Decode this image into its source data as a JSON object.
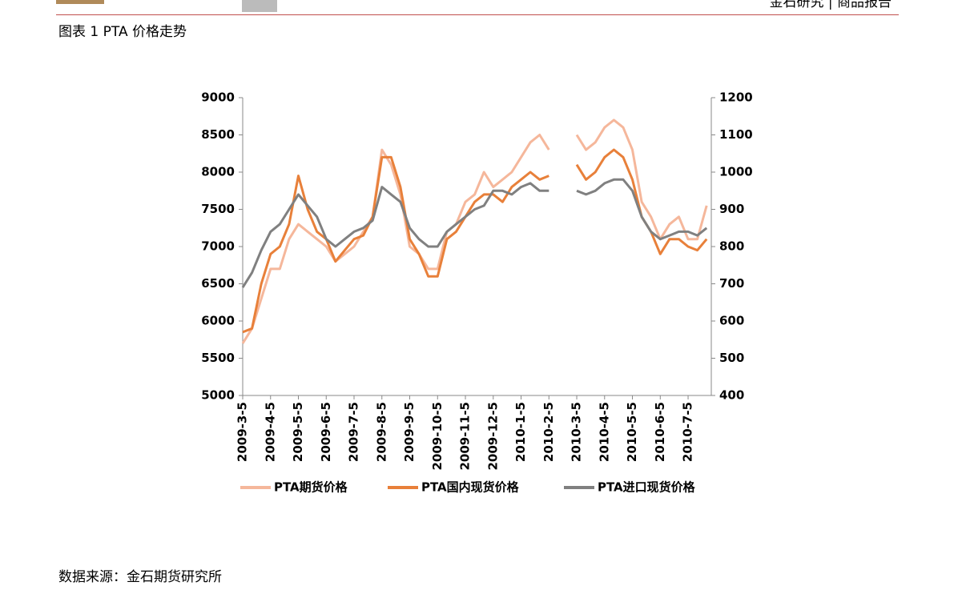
{
  "header": {
    "right": "金石研究 | 商品报告"
  },
  "figure_title": "图表 1 PTA 价格走势",
  "chart_data": {
    "type": "line",
    "categories": [
      "2009-3-5",
      null,
      null,
      "2009-4-5",
      null,
      null,
      "2009-5-5",
      null,
      null,
      "2009-6-5",
      null,
      null,
      "2009-7-5",
      null,
      null,
      "2009-8-5",
      null,
      null,
      "2009-9-5",
      null,
      null,
      "2009-10-5",
      null,
      null,
      "2009-11-5",
      null,
      null,
      "2009-12-5",
      null,
      null,
      "2010-1-5",
      null,
      null,
      "2010-2-5",
      null,
      null,
      "2010-3-5",
      null,
      null,
      "2010-4-5",
      null,
      null,
      "2010-5-5",
      null,
      null,
      "2010-6-5",
      null,
      null,
      "2010-7-5",
      null,
      null
    ],
    "series": [
      {
        "name": "PTA期货价格",
        "color": "#f5b79b",
        "values": [
          5700,
          5900,
          6300,
          6700,
          6700,
          7100,
          7300,
          7200,
          7100,
          7000,
          6800,
          6900,
          7000,
          7200,
          7400,
          8300,
          8100,
          7700,
          7000,
          6900,
          6700,
          6700,
          7200,
          7300,
          7600,
          7700,
          8000,
          7800,
          7900,
          8000,
          8200,
          8400,
          8500,
          8300,
          null,
          null,
          8500,
          8300,
          8400,
          8600,
          8700,
          8600,
          8300,
          7600,
          7400,
          7100,
          7300,
          7400,
          7100,
          7100,
          7550
        ]
      },
      {
        "name": "PTA国内现货价格",
        "color": "#e8803a",
        "values": [
          5850,
          5900,
          6500,
          6900,
          7000,
          7300,
          7950,
          7500,
          7200,
          7100,
          6800,
          6950,
          7100,
          7150,
          7400,
          8200,
          8200,
          7800,
          7100,
          6900,
          6600,
          6600,
          7100,
          7200,
          7400,
          7600,
          7700,
          7700,
          7600,
          7800,
          7900,
          8000,
          7900,
          7950,
          null,
          null,
          8100,
          7900,
          8000,
          8200,
          8300,
          8200,
          7900,
          7400,
          7200,
          6900,
          7100,
          7100,
          7000,
          6950,
          7100
        ]
      },
      {
        "name": "PTA进口现货价格",
        "color": "#808080",
        "axis": "y2",
        "values": [
          690,
          730,
          790,
          840,
          860,
          900,
          940,
          910,
          880,
          820,
          800,
          820,
          840,
          850,
          870,
          960,
          940,
          920,
          850,
          820,
          800,
          800,
          840,
          860,
          880,
          900,
          910,
          950,
          950,
          940,
          960,
          970,
          950,
          950,
          null,
          null,
          950,
          940,
          950,
          970,
          980,
          980,
          950,
          880,
          840,
          820,
          830,
          840,
          840,
          830,
          850
        ]
      }
    ],
    "ylim": [
      5000,
      9000
    ],
    "yticks": [
      5000,
      5500,
      6000,
      6500,
      7000,
      7500,
      8000,
      8500,
      9000
    ],
    "y2lim": [
      400,
      1200
    ],
    "y2ticks": [
      400,
      500,
      600,
      700,
      800,
      900,
      1000,
      1100,
      1200
    ]
  },
  "source": "数据来源：金石期货研究所"
}
